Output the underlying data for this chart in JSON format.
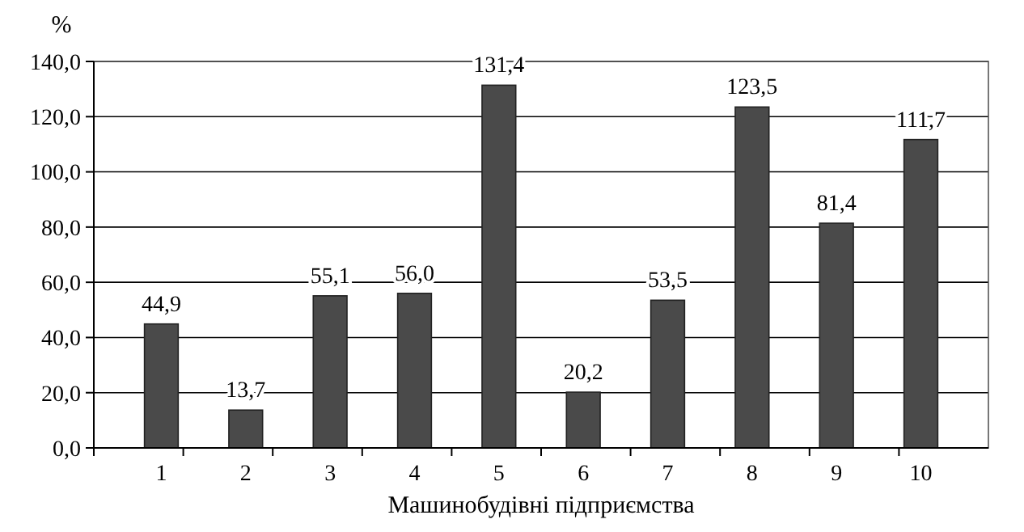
{
  "chart_data": {
    "type": "bar",
    "ylabel": "%",
    "xlabel": "Машинобудівні підприємства",
    "categories": [
      "1",
      "2",
      "3",
      "4",
      "5",
      "6",
      "7",
      "8",
      "9",
      "10"
    ],
    "values": [
      44.9,
      13.7,
      55.1,
      56.0,
      131.4,
      20.2,
      53.5,
      123.5,
      81.4,
      111.7
    ],
    "value_labels": [
      "44,9",
      "13,7",
      "55,1",
      "56,0",
      "131,4",
      "20,2",
      "53,5",
      "123,5",
      "81,4",
      "111,7"
    ],
    "color": "#4a4a4a",
    "ylim": [
      0,
      140
    ],
    "yticks": [
      {
        "value": 0,
        "label": "0,0"
      },
      {
        "value": 20,
        "label": "20,0"
      },
      {
        "value": 40,
        "label": "40,0"
      },
      {
        "value": 60,
        "label": "60,0"
      },
      {
        "value": 80,
        "label": "80,0"
      },
      {
        "value": 100,
        "label": "100,0"
      },
      {
        "value": 120,
        "label": "120,0"
      },
      {
        "value": 140,
        "label": "140,0"
      }
    ],
    "grid": "y"
  }
}
